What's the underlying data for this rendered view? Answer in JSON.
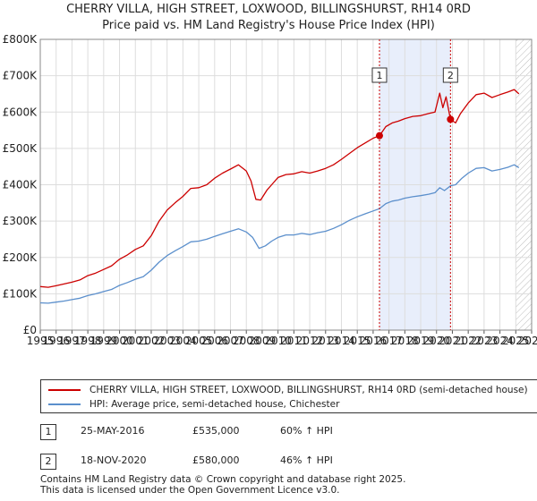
{
  "title_line1": "CHERRY VILLA, HIGH STREET, LOXWOOD, BILLINGSHURST, RH14 0RD",
  "title_line2": "Price paid vs. HM Land Registry's House Price Index (HPI)",
  "colors": {
    "property": "#cc0000",
    "hpi": "#5b8fcc",
    "shade": "#e8eefb",
    "grid": "#dddddd",
    "marker_line": "#cc0000"
  },
  "chart_data": {
    "type": "line",
    "title": "CHERRY VILLA, HIGH STREET, LOXWOOD, BILLINGSHURST, RH14 0RD — Price paid vs. HM Land Registry's House Price Index (HPI)",
    "xlabel": "",
    "ylabel": "",
    "xlim": [
      1995,
      2026
    ],
    "ylim": [
      0,
      800000
    ],
    "y_ticks": [
      0,
      100000,
      200000,
      300000,
      400000,
      500000,
      600000,
      700000,
      800000
    ],
    "y_tick_labels": [
      "£0",
      "£100K",
      "£200K",
      "£300K",
      "£400K",
      "£500K",
      "£600K",
      "£700K",
      "£800K"
    ],
    "x_ticks": [
      1995,
      1996,
      1997,
      1998,
      1999,
      2000,
      2001,
      2002,
      2003,
      2004,
      2005,
      2006,
      2007,
      2008,
      2009,
      2010,
      2011,
      2012,
      2013,
      2014,
      2015,
      2016,
      2017,
      2018,
      2019,
      2020,
      2021,
      2022,
      2023,
      2024,
      2025,
      2026
    ],
    "x_tick_labels": [
      "1995",
      "1996",
      "1997",
      "1998",
      "1999",
      "2000",
      "2001",
      "2002",
      "2003",
      "2004",
      "2005",
      "2006",
      "2007",
      "2008",
      "2009",
      "2010",
      "2011",
      "2012",
      "2013",
      "2014",
      "2015",
      "2016",
      "2017",
      "2018",
      "2019",
      "2020",
      "2021",
      "2022",
      "2023",
      "2024",
      "2025",
      "2026"
    ],
    "shaded_range": [
      2016.4,
      2020.88
    ],
    "forecast_from": 2025.0,
    "series": [
      {
        "name": "CHERRY VILLA, HIGH STREET, LOXWOOD, BILLINGSHURST, RH14 0RD (semi-detached house)",
        "color": "#cc0000",
        "points": [
          [
            1995.0,
            120000
          ],
          [
            1995.5,
            118000
          ],
          [
            1996.0,
            122000
          ],
          [
            1996.5,
            127000
          ],
          [
            1997.0,
            132000
          ],
          [
            1997.5,
            138000
          ],
          [
            1998.0,
            150000
          ],
          [
            1998.5,
            157000
          ],
          [
            1999.0,
            167000
          ],
          [
            1999.5,
            177000
          ],
          [
            2000.0,
            195000
          ],
          [
            2000.5,
            207000
          ],
          [
            2001.0,
            222000
          ],
          [
            2001.5,
            232000
          ],
          [
            2002.0,
            260000
          ],
          [
            2002.5,
            300000
          ],
          [
            2003.0,
            330000
          ],
          [
            2003.5,
            350000
          ],
          [
            2004.0,
            368000
          ],
          [
            2004.5,
            390000
          ],
          [
            2005.0,
            392000
          ],
          [
            2005.5,
            400000
          ],
          [
            2006.0,
            418000
          ],
          [
            2006.5,
            432000
          ],
          [
            2007.0,
            443000
          ],
          [
            2007.5,
            455000
          ],
          [
            2008.0,
            438000
          ],
          [
            2008.3,
            410000
          ],
          [
            2008.6,
            360000
          ],
          [
            2008.9,
            358000
          ],
          [
            2009.3,
            385000
          ],
          [
            2009.7,
            405000
          ],
          [
            2010.0,
            420000
          ],
          [
            2010.5,
            428000
          ],
          [
            2011.0,
            430000
          ],
          [
            2011.5,
            436000
          ],
          [
            2012.0,
            432000
          ],
          [
            2012.5,
            438000
          ],
          [
            2013.0,
            445000
          ],
          [
            2013.5,
            455000
          ],
          [
            2014.0,
            470000
          ],
          [
            2014.5,
            486000
          ],
          [
            2015.0,
            502000
          ],
          [
            2015.5,
            515000
          ],
          [
            2016.0,
            528000
          ],
          [
            2016.4,
            535000
          ],
          [
            2016.8,
            560000
          ],
          [
            2017.2,
            570000
          ],
          [
            2017.6,
            575000
          ],
          [
            2018.0,
            582000
          ],
          [
            2018.5,
            588000
          ],
          [
            2019.0,
            590000
          ],
          [
            2019.5,
            596000
          ],
          [
            2019.9,
            600000
          ],
          [
            2020.2,
            652000
          ],
          [
            2020.4,
            612000
          ],
          [
            2020.6,
            642000
          ],
          [
            2020.88,
            580000
          ],
          [
            2021.2,
            570000
          ],
          [
            2021.5,
            595000
          ],
          [
            2022.0,
            625000
          ],
          [
            2022.5,
            648000
          ],
          [
            2023.0,
            652000
          ],
          [
            2023.5,
            640000
          ],
          [
            2024.0,
            648000
          ],
          [
            2024.5,
            655000
          ],
          [
            2024.9,
            662000
          ],
          [
            2025.2,
            650000
          ]
        ]
      },
      {
        "name": "HPI: Average price, semi-detached house, Chichester",
        "color": "#5b8fcc",
        "points": [
          [
            1995.0,
            75000
          ],
          [
            1995.5,
            74000
          ],
          [
            1996.0,
            77000
          ],
          [
            1996.5,
            80000
          ],
          [
            1997.0,
            84000
          ],
          [
            1997.5,
            88000
          ],
          [
            1998.0,
            95000
          ],
          [
            1998.5,
            100000
          ],
          [
            1999.0,
            106000
          ],
          [
            1999.5,
            112000
          ],
          [
            2000.0,
            123000
          ],
          [
            2000.5,
            131000
          ],
          [
            2001.0,
            140000
          ],
          [
            2001.5,
            147000
          ],
          [
            2002.0,
            165000
          ],
          [
            2002.5,
            187000
          ],
          [
            2003.0,
            205000
          ],
          [
            2003.5,
            218000
          ],
          [
            2004.0,
            230000
          ],
          [
            2004.5,
            243000
          ],
          [
            2005.0,
            245000
          ],
          [
            2005.5,
            250000
          ],
          [
            2006.0,
            258000
          ],
          [
            2006.5,
            265000
          ],
          [
            2007.0,
            272000
          ],
          [
            2007.5,
            279000
          ],
          [
            2008.0,
            270000
          ],
          [
            2008.4,
            255000
          ],
          [
            2008.8,
            225000
          ],
          [
            2009.2,
            232000
          ],
          [
            2009.6,
            245000
          ],
          [
            2010.0,
            255000
          ],
          [
            2010.5,
            262000
          ],
          [
            2011.0,
            262000
          ],
          [
            2011.5,
            266000
          ],
          [
            2012.0,
            263000
          ],
          [
            2012.5,
            268000
          ],
          [
            2013.0,
            272000
          ],
          [
            2013.5,
            280000
          ],
          [
            2014.0,
            290000
          ],
          [
            2014.5,
            302000
          ],
          [
            2015.0,
            312000
          ],
          [
            2015.5,
            320000
          ],
          [
            2016.0,
            328000
          ],
          [
            2016.4,
            334000
          ],
          [
            2016.8,
            348000
          ],
          [
            2017.2,
            355000
          ],
          [
            2017.6,
            358000
          ],
          [
            2018.0,
            363000
          ],
          [
            2018.5,
            367000
          ],
          [
            2019.0,
            370000
          ],
          [
            2019.5,
            374000
          ],
          [
            2019.9,
            378000
          ],
          [
            2020.2,
            392000
          ],
          [
            2020.5,
            384000
          ],
          [
            2020.88,
            397000
          ],
          [
            2021.2,
            400000
          ],
          [
            2021.6,
            418000
          ],
          [
            2022.0,
            432000
          ],
          [
            2022.5,
            445000
          ],
          [
            2023.0,
            447000
          ],
          [
            2023.5,
            438000
          ],
          [
            2024.0,
            442000
          ],
          [
            2024.5,
            448000
          ],
          [
            2024.9,
            455000
          ],
          [
            2025.2,
            447000
          ]
        ]
      }
    ],
    "markers": [
      {
        "label": "1",
        "x": 2016.4,
        "y": 535000
      },
      {
        "label": "2",
        "x": 2020.88,
        "y": 580000
      }
    ]
  },
  "legend": {
    "items": [
      {
        "label": "CHERRY VILLA, HIGH STREET, LOXWOOD, BILLINGSHURST, RH14 0RD (semi-detached house)",
        "color": "#cc0000"
      },
      {
        "label": "HPI: Average price, semi-detached house, Chichester",
        "color": "#5b8fcc"
      }
    ]
  },
  "transactions": [
    {
      "id": "1",
      "date": "25-MAY-2016",
      "price": "£535,000",
      "hpi": "60% ↑ HPI"
    },
    {
      "id": "2",
      "date": "18-NOV-2020",
      "price": "£580,000",
      "hpi": "46% ↑ HPI"
    }
  ],
  "footer": {
    "line1": "Contains HM Land Registry data © Crown copyright and database right 2025.",
    "line2": "This data is licensed under the Open Government Licence v3.0."
  }
}
